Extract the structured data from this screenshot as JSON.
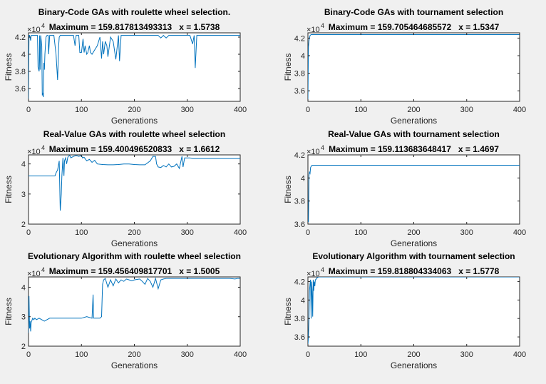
{
  "chart_data": [
    {
      "type": "line",
      "title": "Binary-Code GAs with roulette wheel selection.",
      "subtitle": "Maximum = 159.817813493313   x = 1.5738",
      "xlabel": "Generations",
      "ylabel": "Fitness",
      "exponent": "×10",
      "exp_power": "4",
      "xlim": [
        0,
        400
      ],
      "ylim": [
        3.45,
        4.25
      ],
      "xticks": [
        "0",
        "100",
        "200",
        "300",
        "400"
      ],
      "yticks": [
        "3.6",
        "3.8",
        "4",
        "4.2"
      ],
      "grid": false,
      "line_color": "#0072bd",
      "series": [
        {
          "x": [
            0,
            1,
            2,
            4,
            5,
            6,
            7,
            9,
            10,
            12,
            13,
            15,
            16,
            17,
            18,
            20,
            21,
            22,
            23,
            25,
            26,
            27,
            28,
            29,
            30,
            31,
            33,
            35,
            37,
            38,
            40,
            42,
            45,
            48,
            52,
            55,
            57,
            58,
            60,
            62,
            65,
            70,
            75,
            85,
            88,
            90,
            95,
            97,
            100,
            103,
            105,
            107,
            110,
            112,
            115,
            117,
            120,
            125,
            130,
            135,
            138,
            140,
            142,
            145,
            148,
            150,
            155,
            160,
            165,
            170,
            172,
            175,
            177,
            180,
            200,
            235,
            240,
            245,
            250,
            255,
            260,
            265,
            270,
            280,
            290,
            300,
            305,
            310,
            313,
            315,
            318,
            320,
            325,
            330,
            335,
            340,
            350,
            360,
            380,
            400
          ],
          "y": [
            3.48,
            4.22,
            4.22,
            4.16,
            4.22,
            4.22,
            4.22,
            4.22,
            4.22,
            4.22,
            4.22,
            4.22,
            4.22,
            4.22,
            3.85,
            3.8,
            4.22,
            3.82,
            4.22,
            4.1,
            3.52,
            3.55,
            3.5,
            3.9,
            3.82,
            4.0,
            4.2,
            4.22,
            4.22,
            4.0,
            4.22,
            4.22,
            4.22,
            4.22,
            4.0,
            3.7,
            4.1,
            4.2,
            4.22,
            4.22,
            4.22,
            4.22,
            4.22,
            4.22,
            4.1,
            4.22,
            4.22,
            4.02,
            4.02,
            4.18,
            4.02,
            4.1,
            4.0,
            4.02,
            4.1,
            4.02,
            4.0,
            4.05,
            4.1,
            4.2,
            3.95,
            4.15,
            4.0,
            4.15,
            4.1,
            3.97,
            4.2,
            4.15,
            3.94,
            4.22,
            3.92,
            4.22,
            4.22,
            4.22,
            4.22,
            4.22,
            4.22,
            4.22,
            4.19,
            4.22,
            4.19,
            4.22,
            4.22,
            4.22,
            4.22,
            4.22,
            4.22,
            4.12,
            4.22,
            3.84,
            4.22,
            4.22,
            4.22,
            4.22,
            4.22,
            4.22,
            4.22,
            4.22,
            4.22,
            4.22
          ]
        }
      ]
    },
    {
      "type": "line",
      "title": "Binary-Code GAs with tournament selection",
      "subtitle": "Maximum = 159.705464685572   x = 1.5347",
      "xlabel": "Generations",
      "ylabel": "Fitness",
      "exponent": "×10",
      "exp_power": "4",
      "xlim": [
        0,
        400
      ],
      "ylim": [
        3.48,
        4.26
      ],
      "xticks": [
        "0",
        "100",
        "200",
        "300",
        "400"
      ],
      "yticks": [
        "3.6",
        "3.8",
        "4",
        "4.2"
      ],
      "grid": false,
      "line_color": "#0072bd",
      "series": [
        {
          "x": [
            0,
            1,
            2,
            3,
            4,
            6,
            400
          ],
          "y": [
            3.5,
            4.1,
            4.17,
            4.2,
            4.23,
            4.24,
            4.24
          ]
        }
      ]
    },
    {
      "type": "line",
      "title": "Real-Value GAs with roulette wheel selection",
      "subtitle": "Maximum = 159.400496520833   x = 1.6612",
      "xlabel": "Generations",
      "ylabel": "Fitness",
      "exponent": "×10",
      "exp_power": "4",
      "xlim": [
        0,
        400
      ],
      "ylim": [
        2.0,
        4.3
      ],
      "xticks": [
        "0",
        "100",
        "200",
        "300",
        "400"
      ],
      "yticks": [
        "2",
        "3",
        "4"
      ],
      "grid": false,
      "line_color": "#0072bd",
      "series": [
        {
          "x": [
            0,
            50,
            52,
            55,
            57,
            58,
            60,
            62,
            63,
            65,
            67,
            68,
            70,
            72,
            74,
            75,
            78,
            80,
            85,
            90,
            95,
            100,
            102,
            105,
            110,
            115,
            120,
            125,
            130,
            140,
            150,
            160,
            170,
            180,
            190,
            200,
            210,
            220,
            230,
            235,
            240,
            242,
            245,
            250,
            255,
            260,
            265,
            270,
            275,
            280,
            285,
            290,
            292,
            295,
            300,
            305,
            310,
            320,
            350,
            380,
            400
          ],
          "y": [
            3.6,
            3.6,
            3.7,
            3.8,
            4.0,
            4.1,
            2.45,
            3.0,
            3.6,
            4.2,
            3.6,
            4.1,
            4.2,
            4.0,
            4.2,
            4.25,
            4.28,
            4.2,
            4.25,
            4.28,
            4.25,
            4.28,
            4.2,
            4.22,
            4.1,
            4.15,
            4.05,
            4.12,
            4.0,
            3.98,
            3.97,
            3.97,
            3.98,
            4.0,
            4.0,
            3.98,
            3.97,
            3.97,
            4.1,
            4.25,
            4.25,
            4.0,
            3.9,
            3.88,
            3.95,
            3.9,
            4.0,
            3.9,
            3.92,
            4.0,
            3.85,
            4.25,
            3.9,
            4.2,
            4.2,
            4.2,
            4.18,
            4.18,
            4.18,
            4.18,
            4.18
          ]
        }
      ]
    },
    {
      "type": "line",
      "title": "Real-Value GAs with tournament selection",
      "subtitle": "Maximum = 159.113683648417   x = 1.4697",
      "xlabel": "Generations",
      "ylabel": "Fitness",
      "exponent": "×10",
      "exp_power": "4",
      "xlim": [
        0,
        400
      ],
      "ylim": [
        3.6,
        4.2
      ],
      "xticks": [
        "0",
        "100",
        "200",
        "300",
        "400"
      ],
      "yticks": [
        "3.6",
        "3.8",
        "4",
        "4.2"
      ],
      "grid": false,
      "line_color": "#0072bd",
      "series": [
        {
          "x": [
            0,
            1,
            2,
            3,
            4,
            5,
            6,
            8,
            400
          ],
          "y": [
            3.62,
            3.62,
            4.02,
            4.05,
            4.04,
            4.09,
            4.1,
            4.11,
            4.11
          ]
        }
      ]
    },
    {
      "type": "line",
      "title": "Evolutionary Algorithm with roulette wheel selection",
      "subtitle": "Maximum = 159.456409817701   x = 1.5005",
      "xlabel": "Generations",
      "ylabel": "Fitness",
      "exponent": "×10",
      "exp_power": "4",
      "xlim": [
        0,
        400
      ],
      "ylim": [
        2.0,
        4.35
      ],
      "xticks": [
        "0",
        "100",
        "200",
        "300",
        "400"
      ],
      "yticks": [
        "2",
        "3",
        "4"
      ],
      "grid": false,
      "line_color": "#0072bd",
      "series": [
        {
          "x": [
            0,
            1,
            2,
            3,
            4,
            5,
            8,
            10,
            12,
            15,
            20,
            25,
            30,
            40,
            60,
            80,
            100,
            110,
            120,
            122,
            123,
            124,
            126,
            130,
            135,
            138,
            140,
            142,
            145,
            150,
            155,
            160,
            165,
            170,
            175,
            180,
            185,
            190,
            195,
            200,
            210,
            215,
            220,
            225,
            230,
            235,
            240,
            245,
            250,
            255,
            260,
            270,
            290,
            310,
            330,
            340,
            360,
            380,
            390,
            395,
            400
          ],
          "y": [
            2.45,
            3.7,
            2.6,
            2.85,
            2.5,
            2.8,
            2.95,
            2.9,
            2.95,
            2.9,
            2.95,
            2.9,
            2.85,
            2.95,
            2.95,
            2.95,
            2.95,
            3.0,
            2.95,
            3.75,
            2.95,
            2.95,
            2.95,
            2.95,
            2.95,
            3.0,
            4.1,
            4.25,
            4.3,
            4.0,
            4.25,
            4.05,
            4.28,
            4.15,
            4.25,
            4.2,
            4.28,
            4.25,
            4.22,
            4.25,
            4.28,
            4.2,
            4.1,
            4.3,
            4.2,
            4.0,
            4.3,
            3.95,
            4.25,
            4.28,
            4.3,
            4.3,
            4.3,
            4.3,
            4.3,
            4.3,
            4.3,
            4.3,
            4.28,
            4.3,
            4.3
          ]
        }
      ]
    },
    {
      "type": "line",
      "title": "Evolutionary Algorithm with tournament selection",
      "subtitle": "Maximum = 159.818804334063   x = 1.5778",
      "xlabel": "Generations",
      "ylabel": "Fitness",
      "exponent": "×10",
      "exp_power": "4",
      "xlim": [
        0,
        400
      ],
      "ylim": [
        3.5,
        4.25
      ],
      "xticks": [
        "0",
        "100",
        "200",
        "300",
        "400"
      ],
      "yticks": [
        "3.6",
        "3.8",
        "4",
        "4.2"
      ],
      "grid": false,
      "line_color": "#0072bd",
      "series": [
        {
          "x": [
            0,
            1,
            2,
            3,
            4,
            5,
            6,
            7,
            8,
            9,
            10,
            11,
            12,
            13,
            14,
            15,
            17,
            20,
            400
          ],
          "y": [
            3.52,
            3.6,
            3.8,
            4.1,
            4.18,
            4.22,
            3.8,
            4.2,
            4.1,
            3.82,
            4.22,
            4.1,
            4.2,
            4.15,
            4.22,
            4.22,
            4.24,
            4.25,
            4.25
          ]
        }
      ]
    }
  ]
}
